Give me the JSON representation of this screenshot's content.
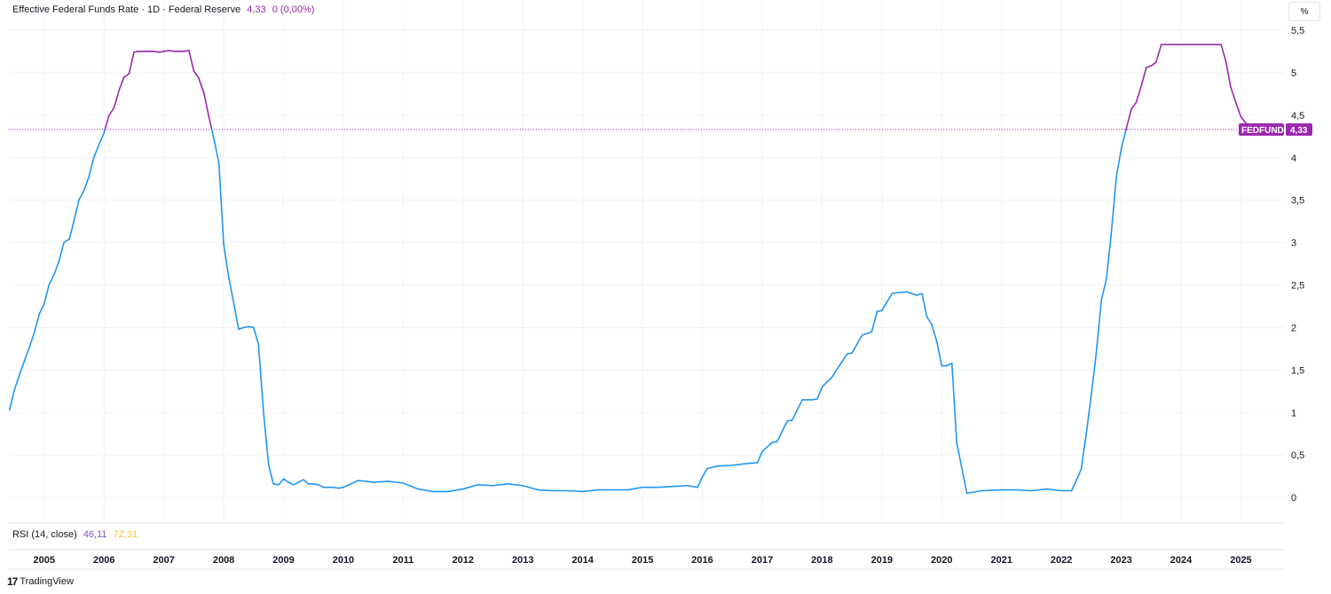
{
  "header": {
    "title": "Effective Federal Funds Rate · 1D · Federal Reserve",
    "last_value": "4,33",
    "change": "0 (0,00%)"
  },
  "rsi": {
    "label": "RSI (14, close)",
    "value1": "46,11",
    "value2": "72,31"
  },
  "axis": {
    "unit_button": "%"
  },
  "price_label": {
    "symbol": "FEDFUNDS",
    "value": "4,33"
  },
  "branding": {
    "logo": "17",
    "name": "TradingView"
  },
  "colors": {
    "line_low": "#2196f3",
    "line_high": "#9c27b0",
    "price_line": "#9c27b0",
    "grid": "#f0f3fa"
  },
  "chart_data": {
    "type": "line",
    "title": "Effective Federal Funds Rate · 1D · Federal Reserve",
    "xlabel": "",
    "ylabel": "",
    "ylim": [
      -0.28,
      5.5
    ],
    "yticks": [
      "0",
      "0,5",
      "1",
      "1,5",
      "2",
      "2,5",
      "3",
      "3,5",
      "4",
      "4,5",
      "5",
      "5,5"
    ],
    "ytick_values": [
      0,
      0.5,
      1,
      1.5,
      2,
      2.5,
      3,
      3.5,
      4,
      4.5,
      5,
      5.5
    ],
    "xticks": [
      "2005",
      "2006",
      "2007",
      "2008",
      "2009",
      "2010",
      "2011",
      "2012",
      "2013",
      "2014",
      "2015",
      "2016",
      "2017",
      "2018",
      "2019",
      "2020",
      "2021",
      "2022",
      "2023",
      "2024",
      "2025"
    ],
    "xtick_values": [
      2005,
      2006,
      2007,
      2008,
      2009,
      2010,
      2011,
      2012,
      2013,
      2014,
      2015,
      2016,
      2017,
      2018,
      2019,
      2020,
      2021,
      2022,
      2023,
      2024,
      2025
    ],
    "xlim": [
      2004.41,
      2025.72
    ],
    "grid": true,
    "color_threshold": 4.33,
    "last_value": 4.33,
    "series": [
      {
        "x": [
          2004.42,
          2004.5,
          2004.58,
          2004.67,
          2004.75,
          2004.83,
          2004.92,
          2005.0,
          2005.08,
          2005.17,
          2005.25,
          2005.33,
          2005.42,
          2005.5,
          2005.58,
          2005.67,
          2005.75,
          2005.83,
          2005.92,
          2006.0,
          2006.08,
          2006.17,
          2006.25,
          2006.33,
          2006.42,
          2006.5,
          2006.58,
          2006.67,
          2006.75,
          2006.83,
          2006.92,
          2007.0,
          2007.08,
          2007.17,
          2007.25,
          2007.33,
          2007.42,
          2007.5,
          2007.58,
          2007.67,
          2007.75,
          2007.83,
          2007.92,
          2008.0,
          2008.08,
          2008.17,
          2008.25,
          2008.33,
          2008.42,
          2008.5,
          2008.58,
          2008.67,
          2008.75,
          2008.83,
          2008.92,
          2009.0,
          2009.08,
          2009.17,
          2009.25,
          2009.33,
          2009.42,
          2009.5,
          2009.58,
          2009.67,
          2009.75,
          2009.83,
          2009.92,
          2010.0,
          2010.25,
          2010.5,
          2010.75,
          2011.0,
          2011.25,
          2011.5,
          2011.75,
          2012.0,
          2012.25,
          2012.5,
          2012.75,
          2013.0,
          2013.25,
          2013.5,
          2013.75,
          2014.0,
          2014.25,
          2014.5,
          2014.75,
          2015.0,
          2015.25,
          2015.5,
          2015.75,
          2015.92,
          2016.0,
          2016.08,
          2016.25,
          2016.5,
          2016.75,
          2016.92,
          2017.0,
          2017.17,
          2017.25,
          2017.42,
          2017.5,
          2017.67,
          2017.83,
          2017.92,
          2018.0,
          2018.17,
          2018.25,
          2018.42,
          2018.5,
          2018.67,
          2018.83,
          2018.92,
          2019.0,
          2019.17,
          2019.25,
          2019.42,
          2019.5,
          2019.58,
          2019.67,
          2019.75,
          2019.83,
          2019.92,
          2020.0,
          2020.08,
          2020.17,
          2020.25,
          2020.42,
          2020.67,
          2021.0,
          2021.25,
          2021.5,
          2021.75,
          2022.0,
          2022.17,
          2022.25,
          2022.33,
          2022.42,
          2022.5,
          2022.58,
          2022.67,
          2022.75,
          2022.83,
          2022.92,
          2023.0,
          2023.08,
          2023.17,
          2023.25,
          2023.33,
          2023.42,
          2023.5,
          2023.58,
          2023.67,
          2023.75,
          2024.0,
          2024.25,
          2024.5,
          2024.67,
          2024.75,
          2024.83,
          2024.92,
          2025.0,
          2025.17,
          2025.25
        ],
        "y": [
          1.03,
          1.26,
          1.43,
          1.61,
          1.76,
          1.93,
          2.16,
          2.28,
          2.5,
          2.63,
          2.79,
          3.0,
          3.04,
          3.26,
          3.5,
          3.62,
          3.78,
          4.0,
          4.16,
          4.29,
          4.49,
          4.59,
          4.79,
          4.94,
          4.99,
          5.24,
          5.25,
          5.25,
          5.25,
          5.25,
          5.24,
          5.25,
          5.26,
          5.25,
          5.25,
          5.25,
          5.26,
          5.02,
          4.94,
          4.76,
          4.49,
          4.24,
          3.94,
          2.98,
          2.61,
          2.28,
          1.98,
          2.0,
          2.01,
          2.0,
          1.81,
          0.97,
          0.39,
          0.16,
          0.15,
          0.22,
          0.18,
          0.15,
          0.18,
          0.21,
          0.16,
          0.16,
          0.15,
          0.12,
          0.12,
          0.12,
          0.11,
          0.12,
          0.2,
          0.18,
          0.19,
          0.17,
          0.1,
          0.07,
          0.07,
          0.1,
          0.15,
          0.14,
          0.16,
          0.14,
          0.09,
          0.08,
          0.08,
          0.07,
          0.09,
          0.09,
          0.09,
          0.12,
          0.12,
          0.13,
          0.14,
          0.12,
          0.24,
          0.34,
          0.37,
          0.38,
          0.4,
          0.41,
          0.54,
          0.65,
          0.66,
          0.9,
          0.91,
          1.15,
          1.15,
          1.16,
          1.3,
          1.42,
          1.51,
          1.69,
          1.7,
          1.91,
          1.95,
          2.19,
          2.2,
          2.4,
          2.41,
          2.42,
          2.4,
          2.38,
          2.4,
          2.13,
          2.04,
          1.83,
          1.55,
          1.55,
          1.58,
          0.65,
          0.05,
          0.08,
          0.09,
          0.09,
          0.08,
          0.1,
          0.08,
          0.08,
          0.2,
          0.33,
          0.77,
          1.21,
          1.68,
          2.33,
          2.56,
          3.08,
          3.78,
          4.1,
          4.33,
          4.57,
          4.65,
          4.83,
          5.06,
          5.08,
          5.12,
          5.33,
          5.33,
          5.33,
          5.33,
          5.33,
          5.33,
          5.13,
          4.83,
          4.64,
          4.48,
          4.33,
          4.33
        ]
      }
    ]
  }
}
